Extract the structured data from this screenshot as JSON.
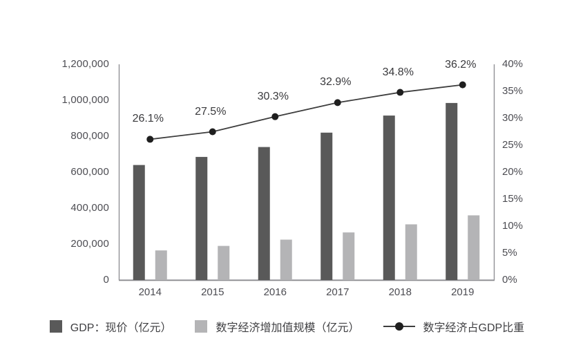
{
  "page": {
    "background": "#ffffff",
    "title": ""
  },
  "chart_data": {
    "type": "bar+line",
    "title": "",
    "categories": [
      "2014",
      "2015",
      "2016",
      "2017",
      "2018",
      "2019"
    ],
    "series": [
      {
        "name": "GDP：现价（亿元）",
        "type": "bar",
        "axis": "left",
        "color": "#595959",
        "values": [
          640000,
          685000,
          740000,
          820000,
          915000,
          985000
        ]
      },
      {
        "name": "数字经济增加值规模（亿元）",
        "type": "bar",
        "axis": "left",
        "color": "#b4b4b6",
        "values": [
          165000,
          190000,
          225000,
          265000,
          310000,
          360000
        ]
      },
      {
        "name": "数字经济占GDP比重",
        "type": "line",
        "axis": "right",
        "color": "#3d3d3d",
        "marker_color": "#1f1f1f",
        "values": [
          26.1,
          27.5,
          30.3,
          32.9,
          34.8,
          36.2
        ],
        "point_labels": [
          "26.1%",
          "27.5%",
          "30.3%",
          "32.9%",
          "34.8%",
          "36.2%"
        ]
      }
    ],
    "axes": {
      "left": {
        "min": 0,
        "max": 1200000,
        "ticks": [
          {
            "label": "0",
            "value": 0
          },
          {
            "label": "200,000",
            "value": 200000
          },
          {
            "label": "400,000",
            "value": 400000
          },
          {
            "label": "600,000",
            "value": 600000
          },
          {
            "label": "800,000",
            "value": 800000
          },
          {
            "label": "1,000,000",
            "value": 1000000
          },
          {
            "label": "1,200,000",
            "value": 1200000
          }
        ]
      },
      "right": {
        "min": 0,
        "max": 40,
        "ticks": [
          {
            "label": "0%",
            "value": 0
          },
          {
            "label": "5%",
            "value": 5
          },
          {
            "label": "10%",
            "value": 10
          },
          {
            "label": "15%",
            "value": 15
          },
          {
            "label": "20%",
            "value": 20
          },
          {
            "label": "25%",
            "value": 25
          },
          {
            "label": "30%",
            "value": 30
          },
          {
            "label": "35%",
            "value": 35
          },
          {
            "label": "40%",
            "value": 40
          }
        ]
      }
    },
    "grid": false,
    "legend_position": "bottom",
    "axis_line_color": "#919195"
  }
}
